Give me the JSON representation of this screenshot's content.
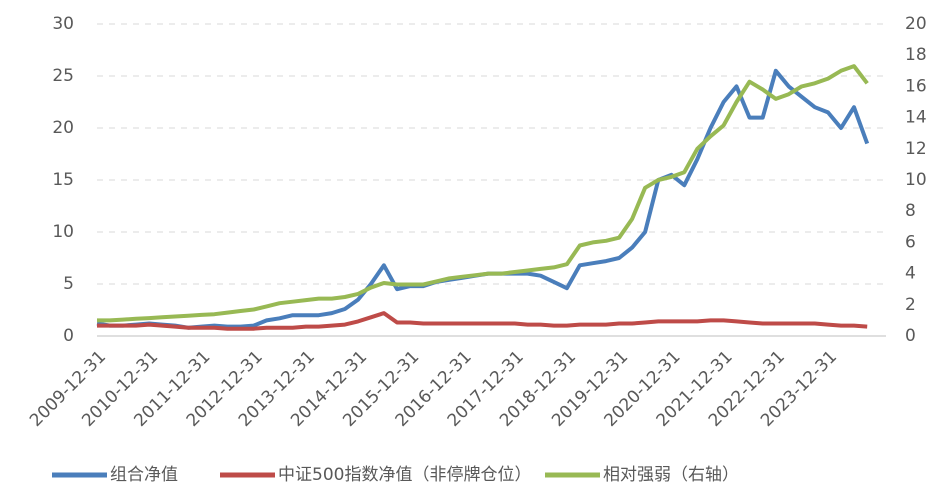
{
  "chart_data": {
    "type": "line",
    "x": [
      "2009-12-31",
      "2010-03-31",
      "2010-06-30",
      "2010-09-30",
      "2010-12-31",
      "2011-03-31",
      "2011-06-30",
      "2011-09-30",
      "2011-12-31",
      "2012-03-31",
      "2012-06-30",
      "2012-09-30",
      "2012-12-31",
      "2013-03-31",
      "2013-06-30",
      "2013-09-30",
      "2013-12-31",
      "2014-03-31",
      "2014-06-30",
      "2014-09-30",
      "2014-12-31",
      "2015-03-31",
      "2015-06-30",
      "2015-09-30",
      "2015-12-31",
      "2016-03-31",
      "2016-06-30",
      "2016-09-30",
      "2016-12-31",
      "2017-03-31",
      "2017-06-30",
      "2017-09-30",
      "2017-12-31",
      "2018-03-31",
      "2018-06-30",
      "2018-09-30",
      "2018-12-31",
      "2019-03-31",
      "2019-06-30",
      "2019-09-30",
      "2019-12-31",
      "2020-03-31",
      "2020-06-30",
      "2020-09-30",
      "2020-12-31",
      "2021-03-31",
      "2021-06-30",
      "2021-09-30",
      "2021-12-31",
      "2022-03-31",
      "2022-06-30",
      "2022-09-30",
      "2022-12-31",
      "2023-03-31",
      "2023-06-30",
      "2023-09-30",
      "2023-12-31",
      "2024-03-31",
      "2024-06-30",
      "2024-09-30"
    ],
    "series": [
      {
        "name": "组合净值",
        "color": "#4a7ebb",
        "axis": "y",
        "values": [
          1.2,
          1.0,
          1.0,
          1.1,
          1.2,
          1.1,
          1.0,
          0.8,
          0.9,
          1.0,
          0.9,
          0.9,
          1.0,
          1.5,
          1.7,
          2.0,
          2.0,
          2.0,
          2.2,
          2.6,
          3.5,
          5.0,
          6.8,
          4.5,
          4.8,
          4.8,
          5.2,
          5.4,
          5.6,
          5.8,
          6.0,
          6.0,
          6.0,
          6.0,
          5.8,
          5.2,
          4.6,
          6.8,
          7.0,
          7.2,
          7.5,
          8.5,
          10,
          15,
          15.5,
          14.5,
          17,
          20,
          22.5,
          24,
          21,
          21,
          25.5,
          24,
          23,
          22,
          21.5,
          20,
          22,
          18.5
        ]
      },
      {
        "name": "中证500指数净值（非停牌仓位）",
        "color": "#be4b48",
        "axis": "y",
        "values": [
          1.0,
          1.0,
          1.0,
          1.0,
          1.1,
          1.0,
          0.9,
          0.8,
          0.8,
          0.8,
          0.7,
          0.7,
          0.7,
          0.8,
          0.8,
          0.8,
          0.9,
          0.9,
          1.0,
          1.1,
          1.4,
          1.8,
          2.2,
          1.3,
          1.3,
          1.2,
          1.2,
          1.2,
          1.2,
          1.2,
          1.2,
          1.2,
          1.2,
          1.1,
          1.1,
          1.0,
          1.0,
          1.1,
          1.1,
          1.1,
          1.2,
          1.2,
          1.3,
          1.4,
          1.4,
          1.4,
          1.4,
          1.5,
          1.5,
          1.4,
          1.3,
          1.2,
          1.2,
          1.2,
          1.2,
          1.2,
          1.1,
          1.0,
          1.0,
          0.9
        ]
      },
      {
        "name": "相对强弱（右轴）",
        "color": "#98b954",
        "axis": "y2",
        "values": [
          1.0,
          1.0,
          1.05,
          1.1,
          1.15,
          1.2,
          1.25,
          1.3,
          1.35,
          1.4,
          1.5,
          1.6,
          1.7,
          1.9,
          2.1,
          2.2,
          2.3,
          2.4,
          2.4,
          2.5,
          2.7,
          3.1,
          3.4,
          3.3,
          3.3,
          3.3,
          3.5,
          3.7,
          3.8,
          3.9,
          4.0,
          4.0,
          4.1,
          4.2,
          4.3,
          4.4,
          4.6,
          5.8,
          6.0,
          6.1,
          6.3,
          7.5,
          9.5,
          10.0,
          10.2,
          10.5,
          12.0,
          12.8,
          13.5,
          15.0,
          16.3,
          15.8,
          15.2,
          15.5,
          16.0,
          16.2,
          16.5,
          17.0,
          17.3,
          16.2
        ]
      }
    ],
    "ylim": [
      0,
      30
    ],
    "yticks": [
      0,
      5,
      10,
      15,
      20,
      25,
      30
    ],
    "y2lim": [
      0,
      20
    ],
    "y2ticks": [
      0,
      2,
      4,
      6,
      8,
      10,
      12,
      14,
      16,
      18,
      20
    ],
    "xticks": [
      "2009-12-31",
      "2010-12-31",
      "2011-12-31",
      "2012-12-31",
      "2013-12-31",
      "2014-12-31",
      "2015-12-31",
      "2016-12-31",
      "2017-12-31",
      "2018-12-31",
      "2019-12-31",
      "2020-12-31",
      "2021-12-31",
      "2022-12-31",
      "2023-12-31"
    ],
    "grid": true,
    "legend": "bottom"
  }
}
